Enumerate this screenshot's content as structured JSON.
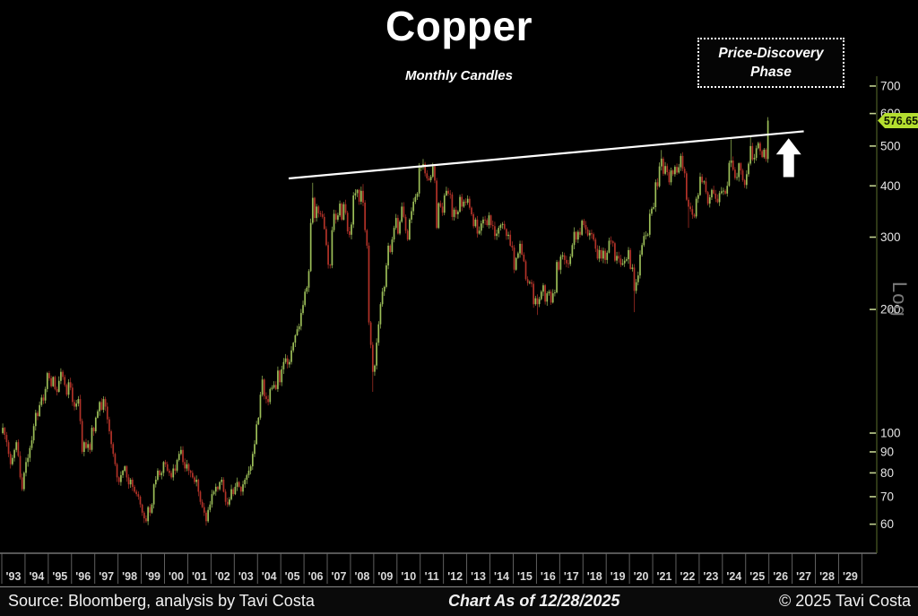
{
  "header": {
    "title": "Copper",
    "subtitle": "Monthly Candles"
  },
  "annotation_box": {
    "line1": "Price-Discovery",
    "line2": "Phase"
  },
  "footer": {
    "source": "Source: Bloomberg, analysis by Tavi Costa",
    "chart_as_of": "Chart As of 12/28/2025",
    "copyright": "© 2025 Tavi Costa"
  },
  "axis": {
    "log_label": "Log",
    "price_tag": "576.65",
    "y_ticks": [
      700,
      600,
      500,
      400,
      300,
      200,
      100,
      90,
      80,
      70,
      60
    ],
    "x_ticks": [
      "'93",
      "'94",
      "'95",
      "'96",
      "'97",
      "'98",
      "'99",
      "'00",
      "'01",
      "'02",
      "'03",
      "'04",
      "'05",
      "'06",
      "'07",
      "'08",
      "'09",
      "'10",
      "'11",
      "'12",
      "'13",
      "'14",
      "'15",
      "'16",
      "'17",
      "'18",
      "'19",
      "'20",
      "'21",
      "'22",
      "'23",
      "'24",
      "'25",
      "'26",
      "'27",
      "'28",
      "'29"
    ]
  },
  "colors": {
    "up": "#9cbe58",
    "down": "#b23228",
    "trendline": "#ffffff",
    "arrow": "#ffffff",
    "tag_bg": "#b4de2f",
    "tag_text": "#0c1500",
    "axis_line": "#4d5c26",
    "tick_mark": "#c2d290",
    "tick_text": "#e4e4e4",
    "year_text": "#d9d9d9",
    "separator": "#6a6a6a",
    "x_axis_line": "#8a8a8a"
  },
  "chart_data": {
    "type": "candlestick",
    "title": "Copper",
    "subtitle": "Monthly Candles",
    "scale": "log",
    "frequency": "monthly",
    "start": "1993-01",
    "end": "2025-12",
    "x_axis_years": [
      1993,
      2030
    ],
    "ylim": [
      55,
      760
    ],
    "last_price": 576.65,
    "grid": false,
    "legend": false,
    "monthly_closes_by_year": [
      {
        "year": 1993,
        "closes": [
          103,
          99,
          95,
          89,
          84,
          87,
          91,
          95,
          88,
          78,
          73,
          80
        ]
      },
      {
        "year": 1994,
        "closes": [
          85,
          87,
          92,
          96,
          104,
          112,
          110,
          117,
          122,
          120,
          128,
          140
        ]
      },
      {
        "year": 1995,
        "closes": [
          136,
          130,
          137,
          128,
          126,
          134,
          141,
          137,
          131,
          124,
          133,
          129
        ]
      },
      {
        "year": 1996,
        "closes": [
          119,
          116,
          118,
          121,
          107,
          90,
          95,
          92,
          94,
          91,
          103,
          101
        ]
      },
      {
        "year": 1997,
        "closes": [
          109,
          113,
          119,
          114,
          121,
          116,
          108,
          101,
          94,
          89,
          84,
          78
        ]
      },
      {
        "year": 1998,
        "closes": [
          76,
          79,
          81,
          83,
          78,
          75,
          77,
          74,
          72,
          71,
          70,
          67
        ]
      },
      {
        "year": 1999,
        "closes": [
          64,
          62,
          61,
          66,
          64,
          67,
          75,
          77,
          81,
          79,
          80,
          85
        ]
      },
      {
        "year": 2000,
        "closes": [
          84,
          81,
          80,
          78,
          82,
          81,
          86,
          89,
          91,
          85,
          82,
          84
        ]
      },
      {
        "year": 2001,
        "closes": [
          81,
          80,
          78,
          76,
          77,
          72,
          68,
          66,
          64,
          61,
          65,
          67
        ]
      },
      {
        "year": 2002,
        "closes": [
          71,
          72,
          74,
          73,
          76,
          77,
          72,
          68,
          67,
          69,
          73,
          71
        ]
      },
      {
        "year": 2003,
        "closes": [
          74,
          76,
          74,
          72,
          75,
          77,
          79,
          81,
          83,
          89,
          94,
          105
        ]
      },
      {
        "year": 2004,
        "closes": [
          109,
          124,
          135,
          123,
          121,
          119,
          128,
          129,
          131,
          128,
          142,
          133
        ]
      },
      {
        "year": 2005,
        "closes": [
          143,
          149,
          152,
          147,
          149,
          159,
          166,
          173,
          179,
          182,
          196,
          205
        ]
      },
      {
        "year": 2006,
        "closes": [
          221,
          226,
          248,
          325,
          374,
          334,
          356,
          343,
          341,
          336,
          314,
          287
        ]
      },
      {
        "year": 2007,
        "closes": [
          257,
          256,
          312,
          342,
          331,
          339,
          362,
          331,
          361,
          344,
          310,
          304
        ]
      },
      {
        "year": 2008,
        "closes": [
          322,
          379,
          384,
          391,
          366,
          389,
          364,
          312,
          286,
          186,
          164,
          141
        ]
      },
      {
        "year": 2009,
        "closes": [
          146,
          166,
          184,
          206,
          221,
          227,
          256,
          286,
          276,
          296,
          316,
          334
        ]
      },
      {
        "year": 2010,
        "closes": [
          306,
          327,
          356,
          336,
          311,
          296,
          331,
          347,
          366,
          376,
          383,
          443
        ]
      },
      {
        "year": 2011,
        "closes": [
          444,
          452,
          429,
          417,
          413,
          421,
          446,
          412,
          316,
          363,
          356,
          344
        ]
      },
      {
        "year": 2012,
        "closes": [
          379,
          389,
          383,
          381,
          336,
          350,
          341,
          346,
          376,
          356,
          366,
          364
        ]
      },
      {
        "year": 2013,
        "closes": [
          372,
          354,
          341,
          319,
          331,
          306,
          311,
          324,
          331,
          330,
          321,
          339
        ]
      },
      {
        "year": 2014,
        "closes": [
          321,
          319,
          302,
          306,
          316,
          321,
          323,
          314,
          302,
          304,
          286,
          283
        ]
      },
      {
        "year": 2015,
        "closes": [
          250,
          267,
          274,
          289,
          272,
          262,
          237,
          232,
          233,
          231,
          206,
          213
        ]
      },
      {
        "year": 2016,
        "closes": [
          206,
          212,
          221,
          229,
          209,
          219,
          221,
          208,
          219,
          220,
          261,
          250
        ]
      },
      {
        "year": 2017,
        "closes": [
          269,
          271,
          264,
          259,
          258,
          269,
          287,
          309,
          296,
          309,
          304,
          329
        ]
      },
      {
        "year": 2018,
        "closes": [
          321,
          313,
          303,
          307,
          305,
          296,
          281,
          266,
          279,
          266,
          278,
          264
        ]
      },
      {
        "year": 2019,
        "closes": [
          275,
          294,
          293,
          290,
          263,
          270,
          266,
          257,
          259,
          263,
          265,
          279
        ]
      },
      {
        "year": 2020,
        "closes": [
          251,
          253,
          222,
          233,
          242,
          272,
          287,
          302,
          303,
          304,
          342,
          352
        ]
      },
      {
        "year": 2021,
        "closes": [
          355,
          408,
          399,
          446,
          466,
          428,
          447,
          432,
          408,
          436,
          427,
          445
        ]
      },
      {
        "year": 2022,
        "closes": [
          431,
          444,
          473,
          440,
          429,
          370,
          356,
          351,
          340,
          337,
          372,
          380
        ]
      },
      {
        "year": 2023,
        "closes": [
          421,
          408,
          410,
          386,
          362,
          375,
          391,
          383,
          372,
          365,
          384,
          388
        ]
      },
      {
        "year": 2024,
        "closes": [
          389,
          383,
          400,
          455,
          461,
          438,
          418,
          420,
          454,
          436,
          413,
          402
        ]
      },
      {
        "year": 2025,
        "closes": [
          427,
          453,
          500,
          464,
          468,
          494,
          508,
          486,
          470,
          490,
          465,
          576.65
        ]
      }
    ],
    "wick_overrides": {
      "1999-3": {
        "low": 60.5
      },
      "2006-5": {
        "high": 407
      },
      "2008-7": {
        "high": 404
      },
      "2008-12": {
        "low": 126
      },
      "2011-2": {
        "high": 465
      },
      "2016-1": {
        "low": 194
      },
      "2020-3": {
        "low": 197
      },
      "2021-5": {
        "high": 489
      },
      "2022-7": {
        "low": 316
      },
      "2024-5": {
        "high": 519
      },
      "2025-3": {
        "high": 530
      },
      "2025-12": {
        "high": 588
      }
    },
    "trendline": {
      "label": "rising resistance line",
      "from": {
        "year": 2005.34,
        "price": 417
      },
      "to": {
        "year": 2027.5,
        "price": 543
      }
    },
    "annotations": [
      {
        "text": "Price-Discovery Phase",
        "type": "boxed-label"
      },
      {
        "type": "up-arrow",
        "year": 2026.85,
        "price_top": 522,
        "price_bottom": 420
      }
    ]
  }
}
